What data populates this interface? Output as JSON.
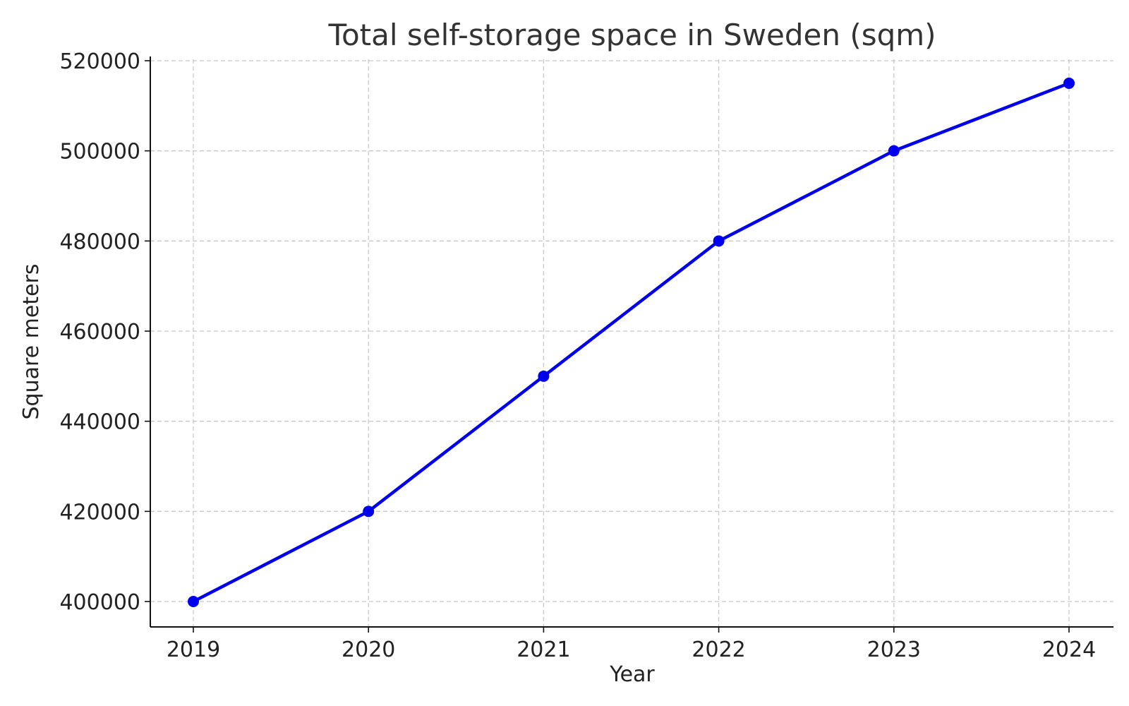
{
  "chart_data": {
    "type": "line",
    "title": "Total self-storage space in Sweden (sqm)",
    "xlabel": "Year",
    "ylabel": "Square meters",
    "categories": [
      "2019",
      "2020",
      "2021",
      "2022",
      "2023",
      "2024"
    ],
    "series": [
      {
        "color": "#0000ee",
        "marker": "circle",
        "values": [
          400000,
          420000,
          450000,
          480000,
          500000,
          515000
        ]
      }
    ],
    "ylim": [
      395000,
      520000
    ],
    "yticks": [
      400000,
      420000,
      440000,
      460000,
      480000,
      500000,
      520000
    ],
    "ytick_labels": [
      "400000",
      "420000",
      "440000",
      "460000",
      "480000",
      "500000",
      "520000"
    ],
    "grid": true,
    "grid_style": "dashed",
    "legend": "none"
  }
}
